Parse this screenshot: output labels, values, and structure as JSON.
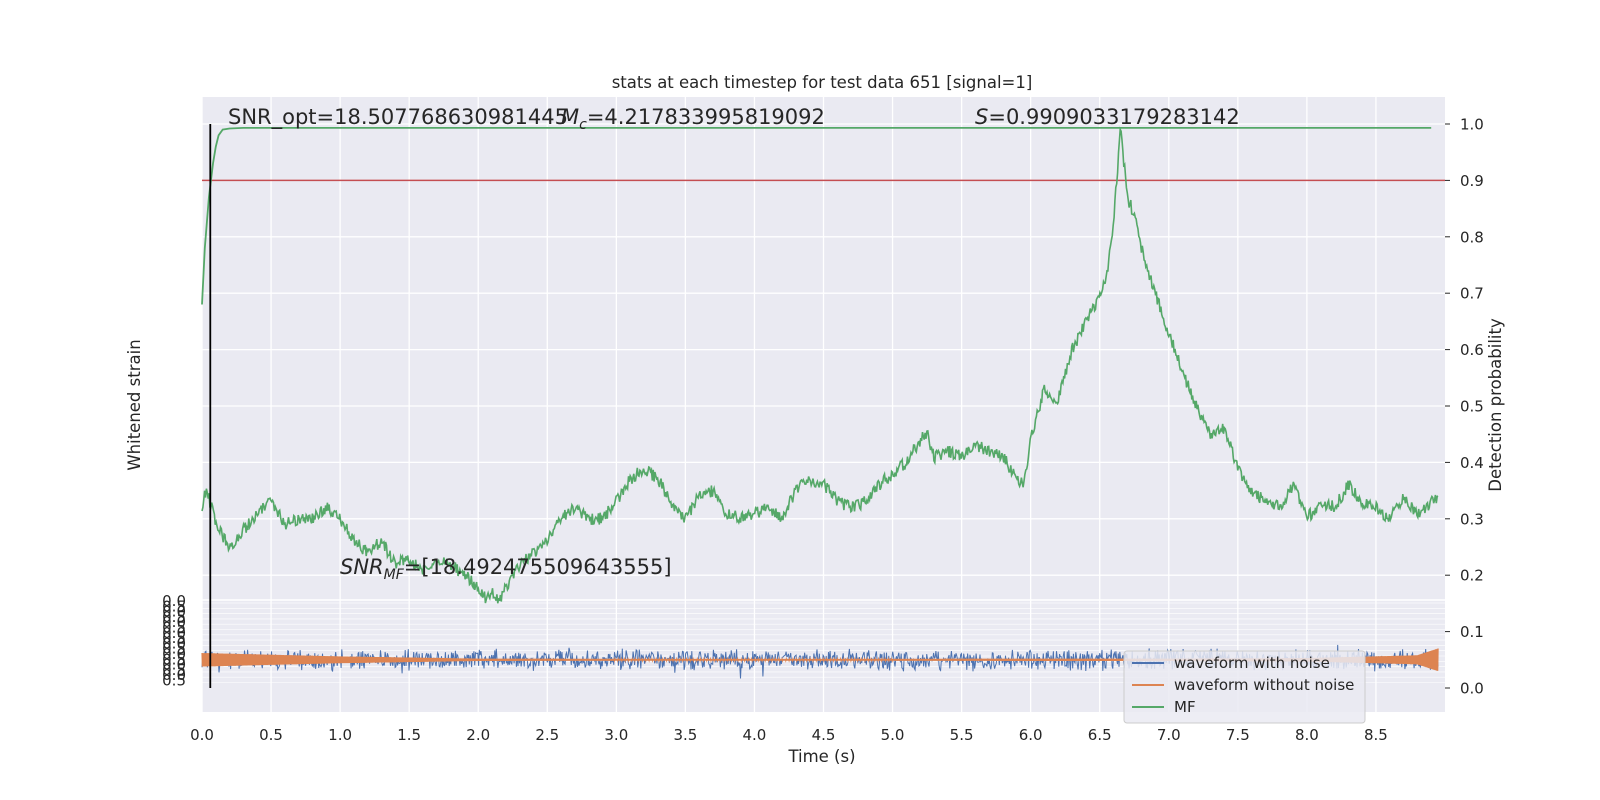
{
  "chart_data": {
    "type": "line",
    "title": "stats at each timestep for test data 651 [signal=1]",
    "xlabel": "Time (s)",
    "ylabel_left": "Whitened strain",
    "ylabel_right": "Detection probability",
    "xlim": [
      0.0,
      9.0
    ],
    "ylim_right": [
      0.0,
      1.0
    ],
    "x_ticks": [
      "0.0",
      "0.5",
      "1.0",
      "1.5",
      "2.0",
      "2.5",
      "3.0",
      "3.5",
      "4.0",
      "4.5",
      "5.0",
      "5.5",
      "6.0",
      "6.5",
      "7.0",
      "7.5",
      "8.0",
      "8.5"
    ],
    "y_ticks_right": [
      "0.0",
      "0.1",
      "0.2",
      "0.3",
      "0.4",
      "0.5",
      "0.6",
      "0.7",
      "0.8",
      "0.9",
      "1.0"
    ],
    "threshold": 0.9,
    "marker_x": 0.06,
    "annotations": {
      "snr_opt": "SNR_opt=18.507768630981445",
      "mc_sym": "M",
      "mc_sub": "c",
      "mc_val": "=4.217833995819092",
      "s_sym": "S",
      "s_val": "=0.9909033179283142",
      "snr_mf_sym": "SNR",
      "snr_mf_sub": "MF",
      "snr_mf_val": "=[18.492475509643555]"
    },
    "series": [
      {
        "name": "waveform with noise",
        "color": "#4c72b0",
        "amplitude_envelope": "noise, approx ±0.02 around 0.05"
      },
      {
        "name": "waveform without noise",
        "color": "#dd8452",
        "x": [
          0.0,
          1.0,
          2.0,
          3.0,
          4.0,
          5.0,
          6.0,
          7.0,
          8.0,
          8.8,
          8.95
        ],
        "amplitude": [
          0.012,
          0.006,
          0.002,
          0.0015,
          0.0015,
          0.0015,
          0.002,
          0.002,
          0.003,
          0.008,
          0.02
        ]
      },
      {
        "name": "MF",
        "color": "#55a868",
        "x": [
          0.0,
          0.03,
          0.06,
          0.1,
          0.2,
          0.3,
          0.4,
          0.5,
          0.6,
          0.7,
          0.8,
          0.9,
          1.0,
          1.1,
          1.2,
          1.3,
          1.4,
          1.5,
          1.6,
          1.7,
          1.8,
          1.9,
          2.0,
          2.05,
          2.1,
          2.15,
          2.2,
          2.3,
          2.4,
          2.5,
          2.6,
          2.7,
          2.8,
          2.9,
          3.0,
          3.1,
          3.2,
          3.3,
          3.4,
          3.5,
          3.6,
          3.7,
          3.8,
          3.9,
          4.0,
          4.1,
          4.2,
          4.3,
          4.4,
          4.5,
          4.6,
          4.7,
          4.8,
          4.9,
          5.0,
          5.1,
          5.2,
          5.25,
          5.3,
          5.4,
          5.5,
          5.6,
          5.7,
          5.8,
          5.9,
          5.95,
          6.0,
          6.1,
          6.2,
          6.3,
          6.4,
          6.5,
          6.55,
          6.6,
          6.65,
          6.7,
          6.75,
          6.8,
          6.9,
          7.0,
          7.1,
          7.2,
          7.3,
          7.4,
          7.5,
          7.6,
          7.7,
          7.8,
          7.9,
          8.0,
          8.1,
          8.2,
          8.3,
          8.4,
          8.5,
          8.6,
          8.7,
          8.8,
          8.9,
          8.95
        ],
        "y": [
          0.32,
          0.35,
          0.33,
          0.29,
          0.25,
          0.28,
          0.31,
          0.33,
          0.29,
          0.3,
          0.3,
          0.32,
          0.3,
          0.26,
          0.24,
          0.26,
          0.22,
          0.23,
          0.21,
          0.23,
          0.22,
          0.2,
          0.18,
          0.16,
          0.17,
          0.15,
          0.18,
          0.22,
          0.24,
          0.26,
          0.3,
          0.32,
          0.3,
          0.3,
          0.33,
          0.37,
          0.39,
          0.37,
          0.33,
          0.3,
          0.34,
          0.35,
          0.31,
          0.3,
          0.31,
          0.32,
          0.3,
          0.35,
          0.37,
          0.36,
          0.33,
          0.32,
          0.33,
          0.36,
          0.38,
          0.4,
          0.44,
          0.45,
          0.41,
          0.42,
          0.41,
          0.43,
          0.42,
          0.41,
          0.37,
          0.36,
          0.44,
          0.53,
          0.51,
          0.6,
          0.65,
          0.69,
          0.73,
          0.83,
          0.99,
          0.87,
          0.84,
          0.78,
          0.7,
          0.63,
          0.56,
          0.5,
          0.45,
          0.46,
          0.39,
          0.35,
          0.33,
          0.32,
          0.36,
          0.3,
          0.33,
          0.32,
          0.36,
          0.33,
          0.32,
          0.3,
          0.34,
          0.31,
          0.33,
          0.34
        ]
      },
      {
        "name": "detection-probability-line",
        "color": "#55a868",
        "x": [
          0.0,
          0.02,
          0.05,
          0.08,
          0.1,
          0.12,
          0.15,
          0.2,
          0.3,
          0.5,
          1.0,
          8.9
        ],
        "y": [
          0.68,
          0.78,
          0.87,
          0.93,
          0.96,
          0.98,
          0.99,
          0.992,
          0.993,
          0.993,
          0.993,
          0.993
        ]
      }
    ],
    "legend": [
      "waveform with noise",
      "waveform without noise",
      "MF"
    ],
    "legend_position": "lower right",
    "grid": true
  }
}
